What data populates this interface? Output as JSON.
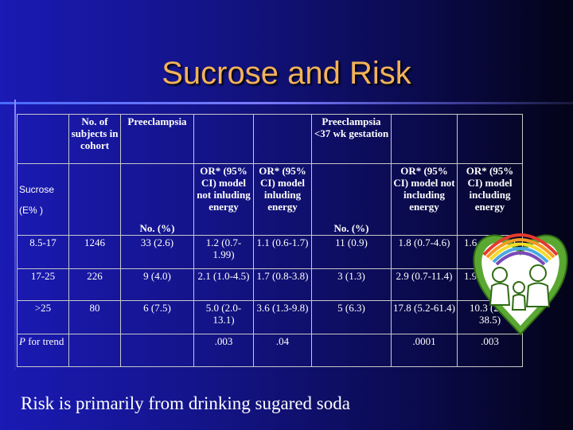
{
  "slide": {
    "title": "Sucrose and Risk",
    "footer": "Risk is primarily from drinking sugared soda"
  },
  "table": {
    "header_row1": {
      "subjects": "No. of subjects in cohort",
      "preeclampsia": "Preeclampsia",
      "preeclampsia_37": "Preeclampsia <37 wk gestation"
    },
    "header_row2": {
      "sucrose_label_line1": "Sucrose",
      "sucrose_label_line2": "(E% )",
      "no_pct_1": "No. (%)",
      "or_not_incl_1": "OR* (95% CI) model not inluding energy",
      "or_incl_1": "OR* (95% CI) model inluding energy",
      "no_pct_2": "No. (%)",
      "or_not_incl_2": "OR* (95% CI) model not including energy",
      "or_incl_2": "OR* (95% CI) model including energy"
    },
    "rows": [
      {
        "sucrose": "8.5-17",
        "subjects": "1246",
        "pre_no": "33 (2.6)",
        "pre_or_not": "1.2 (0.7-1.99)",
        "pre_or_incl": "1.1 (0.6-1.7)",
        "pre37_no": "11 (0.9)",
        "pre37_or_not": "1.8 (0.7-4.6)",
        "pre37_or_incl": "1.6 (0.6-4.1)"
      },
      {
        "sucrose": "17-25",
        "subjects": "226",
        "pre_no": "9 (4.0)",
        "pre_or_not": "2.1 (1.0-4.5)",
        "pre_or_incl": "1.7 (0.8-3.8)",
        "pre37_no": "3 (1.3)",
        "pre37_or_not": "2.9 (0.7-11.4)",
        "pre37_or_incl": "1.9 (0.4-8.0)"
      },
      {
        "sucrose": ">25",
        "subjects": "80",
        "pre_no": "6 (7.5)",
        "pre_or_not": "5.0 (2.0-13.1)",
        "pre_or_incl": "3.6 (1.3-9.8)",
        "pre37_no": "5 (6.3)",
        "pre37_or_not": "17.8 (5.2-61.4)",
        "pre37_or_incl": "10.3 (2.8-38.5)"
      }
    ],
    "ptrend": {
      "label_p": "P",
      "label_rest": " for trend",
      "pre_or_not": ".003",
      "pre_or_incl": ".04",
      "pre37_or_not": ".0001",
      "pre37_or_incl": ".003"
    }
  },
  "logo": {
    "icon": "family-heart-logo"
  }
}
